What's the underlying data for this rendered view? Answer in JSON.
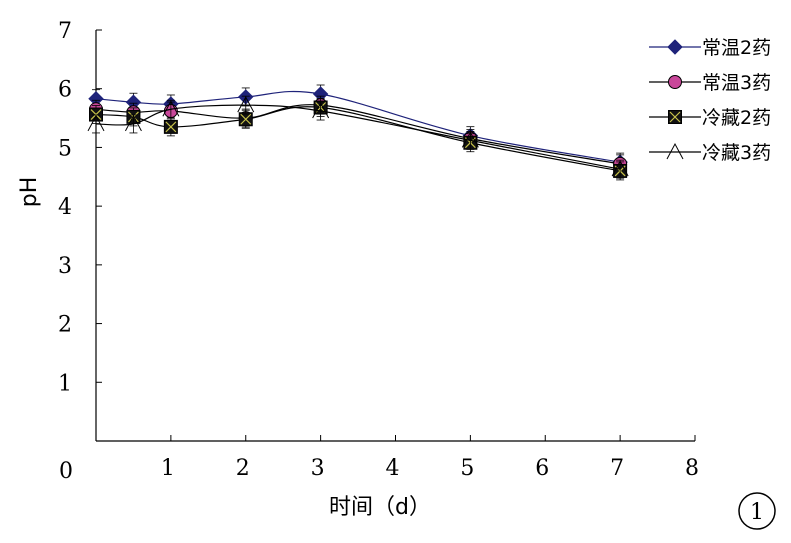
{
  "chart_data": {
    "type": "line",
    "xlabel": "时间（d）",
    "ylabel": "pH",
    "xlim": [
      0,
      8
    ],
    "ylim": [
      0,
      7
    ],
    "x_ticks": [
      "1",
      "2",
      "3",
      "4",
      "5",
      "6",
      "7",
      "8"
    ],
    "y_ticks": [
      "1",
      "2",
      "3",
      "4",
      "5",
      "6",
      "7"
    ],
    "origin_label": "0",
    "grid": false,
    "legend_position": "top-right",
    "panel_marker": "1",
    "series": [
      {
        "name": "常温2药",
        "marker": "diamond",
        "color": "#1f237a",
        "fill": "#1f237a",
        "x": [
          0,
          0.5,
          1,
          2,
          3,
          5,
          7
        ],
        "y": [
          5.83,
          5.77,
          5.74,
          5.86,
          5.91,
          5.2,
          4.75
        ]
      },
      {
        "name": "常温3药",
        "marker": "circle",
        "color": "#000000",
        "fill": "#c9479a",
        "x": [
          0,
          0.5,
          1,
          2,
          3,
          5,
          7
        ],
        "y": [
          5.65,
          5.6,
          5.62,
          5.5,
          5.72,
          5.15,
          4.72
        ]
      },
      {
        "name": "冷藏2药",
        "marker": "square-x",
        "color": "#000000",
        "fill": "#111111",
        "x": [
          0,
          0.5,
          1,
          2,
          3,
          5,
          7
        ],
        "y": [
          5.56,
          5.52,
          5.35,
          5.48,
          5.68,
          5.08,
          4.6
        ]
      },
      {
        "name": "冷藏3药",
        "marker": "triangle",
        "color": "#000000",
        "fill": "none",
        "x": [
          0,
          0.5,
          1,
          2,
          3,
          5,
          7
        ],
        "y": [
          5.4,
          5.4,
          5.65,
          5.72,
          5.62,
          5.12,
          4.63
        ]
      }
    ]
  }
}
